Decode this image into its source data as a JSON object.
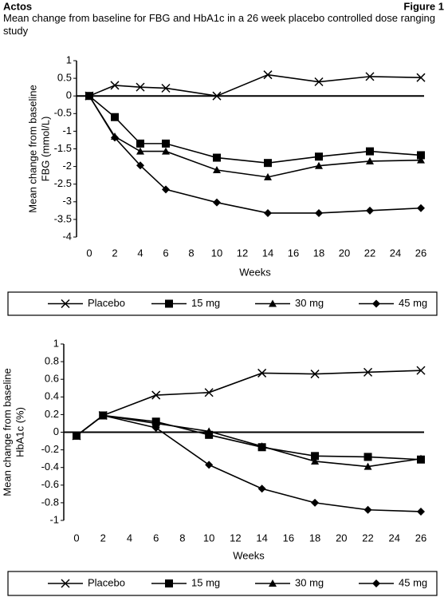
{
  "header": {
    "left": "Actos",
    "right": "Figure 1",
    "title": "Mean change from baseline for FBG and HbA1c in a 26 week placebo controlled dose ranging study"
  },
  "chart_data": [
    {
      "type": "line",
      "ylabel": [
        "Mean change from baseline",
        "FBG (mmol/L)"
      ],
      "xlabel": "Weeks",
      "x": [
        0,
        2,
        4,
        6,
        10,
        14,
        18,
        22,
        26
      ],
      "xlim": [
        0,
        26
      ],
      "xticks": [
        0,
        2,
        4,
        6,
        8,
        10,
        12,
        14,
        16,
        18,
        20,
        22,
        24,
        26
      ],
      "ylim": [
        -4,
        1
      ],
      "yticks": [
        -4,
        -3.5,
        -3,
        -2.5,
        -2,
        -1.5,
        -1,
        -0.5,
        0,
        0.5,
        1
      ],
      "series": [
        {
          "name": "Placebo",
          "marker": "x",
          "color": "#000000",
          "values": [
            0,
            0.3,
            0.25,
            0.22,
            0,
            0.6,
            0.4,
            0.55,
            0.52
          ]
        },
        {
          "name": "15 mg",
          "marker": "square",
          "color": "#000000",
          "values": [
            0,
            -0.6,
            -1.35,
            -1.35,
            -1.75,
            -1.9,
            -1.72,
            -1.57,
            -1.68
          ]
        },
        {
          "name": "30 mg",
          "marker": "triangle",
          "color": "#000000",
          "values": [
            0,
            -1.15,
            -1.57,
            -1.57,
            -2.1,
            -2.3,
            -1.98,
            -1.85,
            -1.82
          ]
        },
        {
          "name": "45 mg",
          "marker": "diamond",
          "color": "#000000",
          "values": [
            0,
            -1.18,
            -1.97,
            -2.65,
            -3.02,
            -3.32,
            -3.32,
            -3.25,
            -3.18
          ]
        }
      ]
    },
    {
      "type": "line",
      "ylabel": [
        "Mean change from baseline",
        "HbA1c (%)"
      ],
      "xlabel": "Weeks",
      "x": [
        0,
        2,
        6,
        10,
        14,
        18,
        22,
        26
      ],
      "xlim": [
        0,
        26
      ],
      "xticks": [
        0,
        2,
        4,
        6,
        8,
        10,
        12,
        14,
        16,
        18,
        20,
        22,
        24,
        26
      ],
      "ylim": [
        -1,
        1
      ],
      "yticks": [
        -1,
        -0.8,
        -0.6,
        -0.4,
        -0.2,
        0,
        0.2,
        0.4,
        0.6,
        0.8,
        1
      ],
      "series": [
        {
          "name": "Placebo",
          "marker": "x",
          "color": "#000000",
          "values": [
            -0.04,
            0.19,
            0.42,
            0.45,
            0.67,
            0.66,
            0.68,
            0.7
          ]
        },
        {
          "name": "15 mg",
          "marker": "square",
          "color": "#000000",
          "values": [
            -0.04,
            0.19,
            0.12,
            -0.03,
            -0.17,
            -0.27,
            -0.28,
            -0.31
          ]
        },
        {
          "name": "30 mg",
          "marker": "triangle",
          "color": "#000000",
          "values": [
            -0.04,
            0.19,
            0.1,
            0.01,
            -0.16,
            -0.33,
            -0.39,
            -0.3
          ]
        },
        {
          "name": "45 mg",
          "marker": "diamond",
          "color": "#000000",
          "values": [
            -0.04,
            0.19,
            0.05,
            -0.37,
            -0.64,
            -0.8,
            -0.88,
            -0.9
          ]
        }
      ]
    }
  ]
}
